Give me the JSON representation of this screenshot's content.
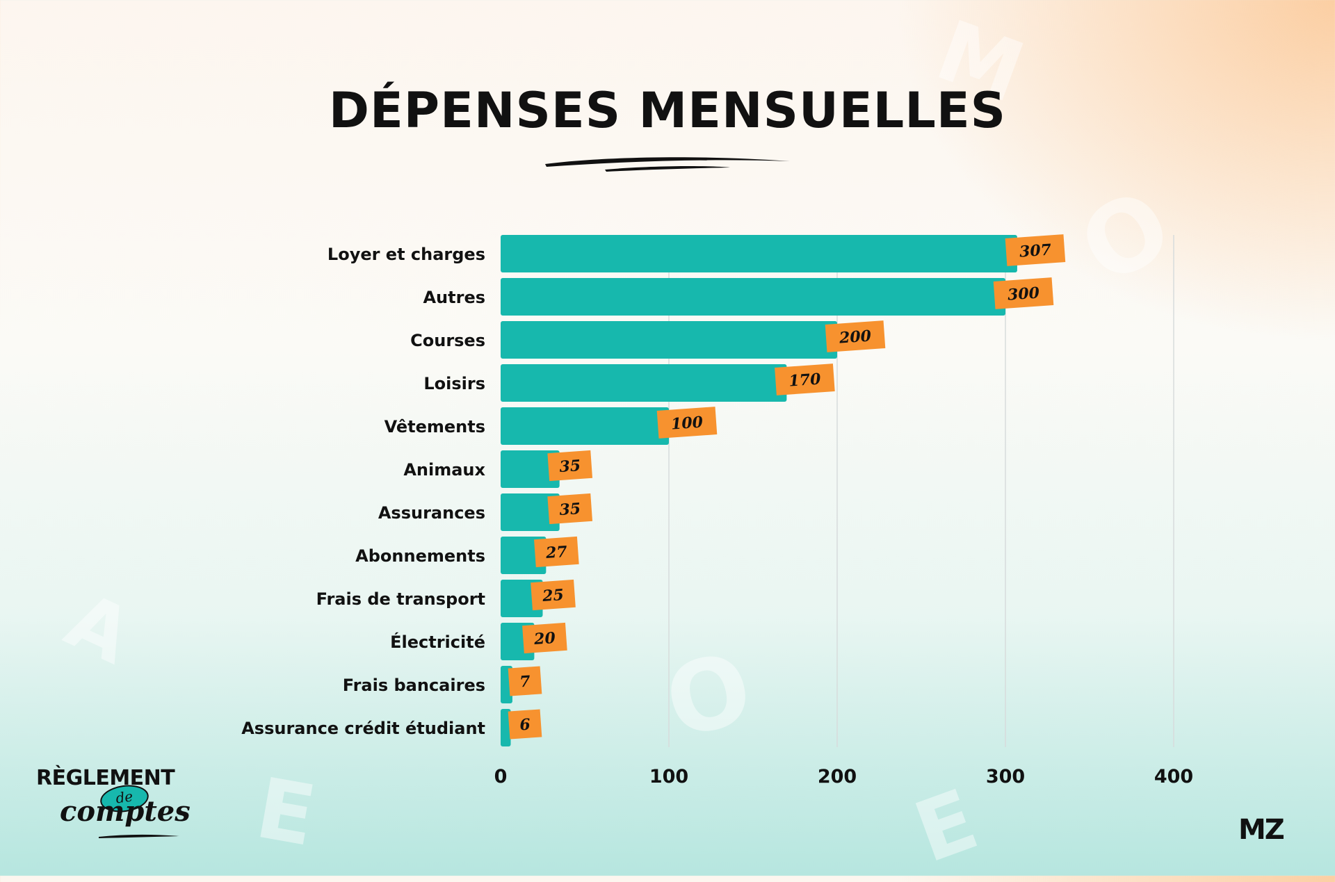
{
  "title": "DÉPENSES MENSUELLES",
  "colors": {
    "bar": "#17b8ad",
    "label_bg": "#f7922f",
    "text": "#111111",
    "grid": "#d7dcdc"
  },
  "chart_data": {
    "type": "bar",
    "orientation": "horizontal",
    "title": "DÉPENSES MENSUELLES",
    "xlabel": "",
    "ylabel": "",
    "categories": [
      "Loyer et charges",
      "Autres",
      "Courses",
      "Loisirs",
      "Vêtements",
      "Animaux",
      "Assurances",
      "Abonnements",
      "Frais de transport",
      "Électricité",
      "Frais bancaires",
      "Assurance crédit étudiant"
    ],
    "values": [
      307,
      300,
      200,
      170,
      100,
      35,
      35,
      27,
      25,
      20,
      7,
      6
    ],
    "xlim": [
      0,
      400
    ],
    "xticks": [
      0,
      100,
      200,
      300,
      400
    ],
    "grid": true,
    "data_labels": true
  },
  "logos": {
    "left_line1": "RÈGLEMENT",
    "left_badge": "de",
    "left_line2": "comptes",
    "right": "MZ"
  }
}
